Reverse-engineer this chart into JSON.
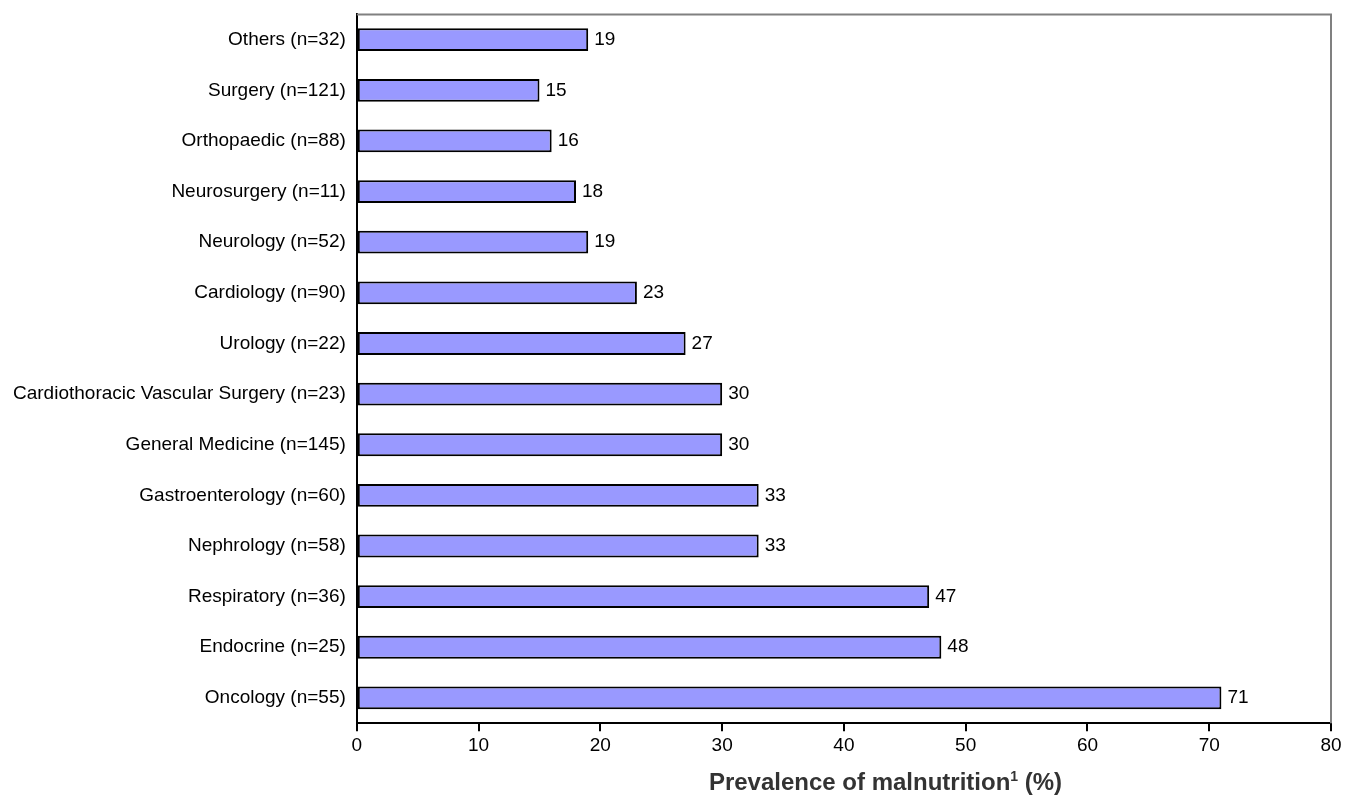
{
  "chart_data": {
    "type": "bar",
    "orientation": "horizontal",
    "xlabel": "Prevalence of malnutrition$^{1}$ (%)",
    "categories": [
      "Others (n=32)",
      "Surgery (n=121)",
      "Orthopaedic (n=88)",
      "Neurosurgery (n=11)",
      "Neurology (n=52)",
      "Cardiology (n=90)",
      "Urology (n=22)",
      "Cardiothoracic Vascular Surgery (n=23)",
      "General Medicine (n=145)",
      "Gastroenterology (n=60)",
      "Nephrology (n=58)",
      "Respiratory (n=36)",
      "Endocrine (n=25)",
      "Oncology (n=55)"
    ],
    "values": [
      19,
      15,
      16,
      18,
      19,
      23,
      27,
      30,
      30,
      33,
      33,
      47,
      48,
      71
    ],
    "color": "#9999ff",
    "xlim": [
      0,
      80
    ],
    "xticks": [
      0,
      10,
      20,
      30,
      40,
      50,
      60,
      70,
      80
    ],
    "grid": false,
    "legend": false,
    "data_labels": true
  }
}
